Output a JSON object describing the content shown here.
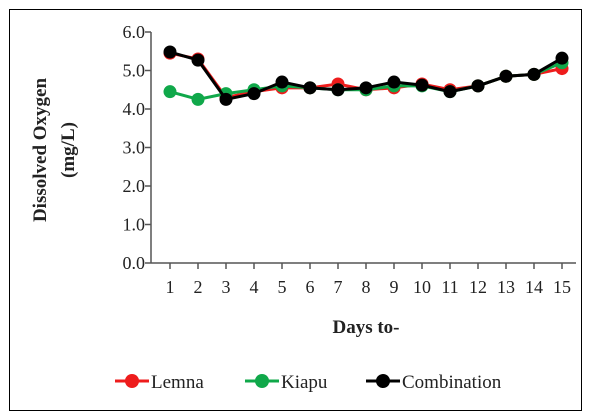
{
  "chart_data": {
    "type": "line",
    "x": [
      1,
      2,
      3,
      4,
      5,
      6,
      7,
      8,
      9,
      10,
      11,
      12,
      13,
      14,
      15
    ],
    "xlabel": "Days to-",
    "ylabel_lines": [
      "Dissolved Oxygen",
      "(mg/L)"
    ],
    "ylim": [
      0,
      6
    ],
    "yticks": [
      "0.0",
      "1.0",
      "2.0",
      "3.0",
      "4.0",
      "5.0",
      "6.0"
    ],
    "grid": false,
    "legend_position": "bottom",
    "series": [
      {
        "name": "Lemna",
        "color": "#ee1c1c",
        "values": [
          5.45,
          5.3,
          4.3,
          4.45,
          4.55,
          4.55,
          4.65,
          4.5,
          4.55,
          4.65,
          4.5,
          4.6,
          4.85,
          4.9,
          5.05
        ]
      },
      {
        "name": "Kiapu",
        "color": "#10a84a",
        "values": [
          4.45,
          4.25,
          4.4,
          4.5,
          4.6,
          4.55,
          4.5,
          4.5,
          4.6,
          4.6,
          4.45,
          4.6,
          4.85,
          4.9,
          5.2
        ]
      },
      {
        "name": "Combination",
        "color": "#000000",
        "values": [
          5.48,
          5.27,
          4.25,
          4.4,
          4.7,
          4.55,
          4.5,
          4.55,
          4.7,
          4.62,
          4.45,
          4.6,
          4.85,
          4.9,
          5.32
        ]
      }
    ]
  }
}
